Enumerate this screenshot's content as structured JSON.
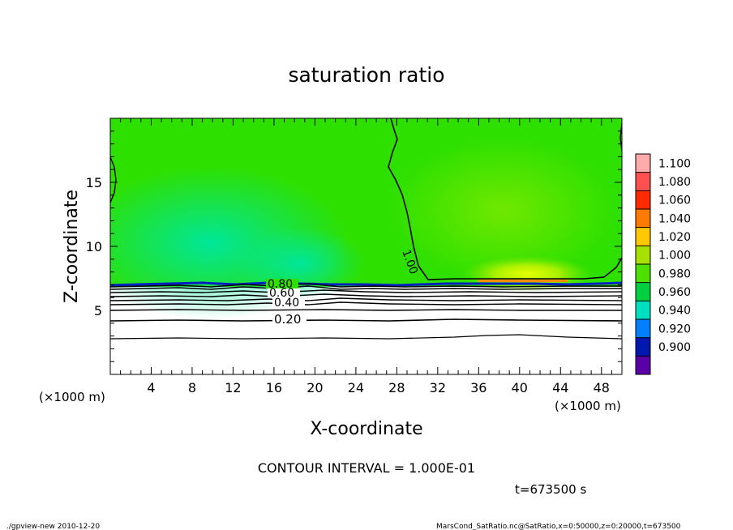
{
  "chart_data": {
    "type": "heatmap",
    "title": "saturation ratio",
    "xlabel": "X-coordinate",
    "ylabel": "Z-coordinate",
    "x_unit_note": "(×1000 m)",
    "y_unit_note": "(×1000 m)",
    "xlim": [
      0,
      50
    ],
    "ylim": [
      0,
      20
    ],
    "x_ticks": [
      4,
      8,
      12,
      16,
      20,
      24,
      28,
      32,
      36,
      40,
      44,
      48
    ],
    "y_ticks": [
      5,
      10,
      15
    ],
    "colorbar": {
      "levels": [
        "1.100",
        "1.080",
        "1.060",
        "1.040",
        "1.020",
        "1.000",
        "0.980",
        "0.960",
        "0.940",
        "0.920",
        "0.900"
      ],
      "colors": [
        "#ffaaaa",
        "#ff5050",
        "#ff2a00",
        "#ff7a00",
        "#ffc800",
        "#a8e000",
        "#4ee000",
        "#00d040",
        "#00e0c0",
        "#0080ff",
        "#0018b0",
        "#5a00a8"
      ]
    },
    "contour_labels": [
      "0.20",
      "0.40",
      "0.60",
      "0.80",
      "1.00"
    ],
    "contour_interval_text": "CONTOUR INTERVAL = 1.000E-01",
    "time_text": "t=673500 s"
  },
  "footer": {
    "left": "./gpview-new   2010-12-20",
    "right": "MarsCond_SatRatio.nc@SatRatio,x=0:50000,z=0:20000,t=673500"
  }
}
